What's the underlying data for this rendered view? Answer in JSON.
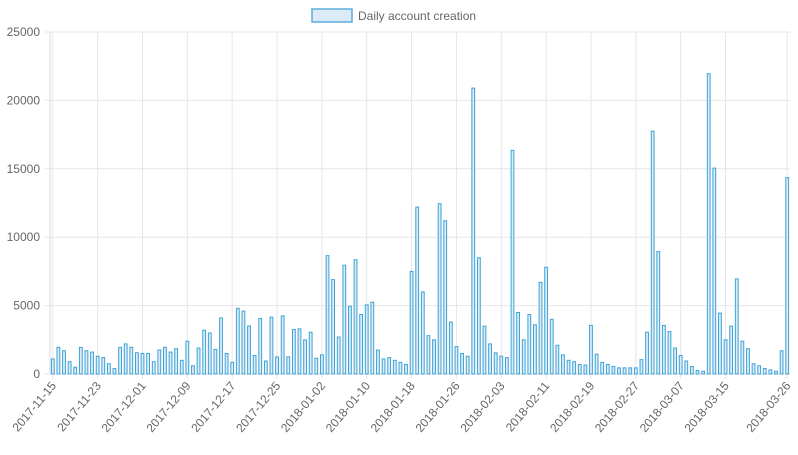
{
  "legend": {
    "label": "Daily account creation",
    "swatch_fill": "#dcebf8",
    "swatch_stroke": "#5aaedc"
  },
  "colors": {
    "bar_fill": "#dcebf8",
    "bar_stroke": "#3da3d6",
    "grid": "#e6e6e6",
    "axis_text": "#666666"
  },
  "chart_data": {
    "type": "bar",
    "title": "",
    "xlabel": "",
    "ylabel": "",
    "ylim": [
      0,
      25000
    ],
    "y_ticks": [
      "0",
      "5000",
      "10000",
      "15000",
      "20000",
      "25000"
    ],
    "x_tick_labels": [
      "2017-11-15",
      "2017-11-23",
      "2017-12-01",
      "2017-12-09",
      "2017-12-17",
      "2017-12-25",
      "2018-01-02",
      "2018-01-10",
      "2018-01-18",
      "2018-01-26",
      "2018-02-03",
      "2018-02-11",
      "2018-02-19",
      "2018-02-27",
      "2018-03-07",
      "2018-03-15",
      "2018-03-26"
    ],
    "grid": true,
    "legend_position": "top-center",
    "start_date": "2017-11-15",
    "series": [
      {
        "name": "Daily account creation",
        "values": [
          1100,
          1950,
          1700,
          900,
          500,
          1950,
          1700,
          1600,
          1300,
          1200,
          750,
          400,
          1950,
          2200,
          1950,
          1550,
          1500,
          1500,
          900,
          1750,
          1950,
          1600,
          1850,
          1000,
          2400,
          600,
          1900,
          3200,
          3000,
          1800,
          4100,
          1500,
          850,
          4800,
          4600,
          3500,
          1350,
          4050,
          950,
          4150,
          1250,
          4250,
          1250,
          3250,
          3300,
          2500,
          3050,
          1150,
          1400,
          8650,
          6900,
          2700,
          7950,
          4950,
          8350,
          4350,
          5050,
          5250,
          1750,
          1100,
          1200,
          1000,
          850,
          700,
          7500,
          12200,
          6000,
          2800,
          2500,
          12450,
          11200,
          3800,
          2000,
          1500,
          1300,
          20900,
          8500,
          3500,
          2200,
          1550,
          1300,
          1200,
          16350,
          4500,
          2500,
          4350,
          3600,
          6700,
          7800,
          4000,
          2100,
          1400,
          1000,
          900,
          700,
          650,
          3550,
          1450,
          850,
          700,
          550,
          450,
          450,
          450,
          450,
          1050,
          3050,
          17750,
          8950,
          3550,
          3100,
          1900,
          1350,
          950,
          550,
          250,
          200,
          21950,
          15050,
          4450,
          2500,
          3500,
          6950,
          2400,
          1850,
          750,
          600,
          400,
          300,
          200,
          1700,
          14350
        ]
      }
    ]
  }
}
